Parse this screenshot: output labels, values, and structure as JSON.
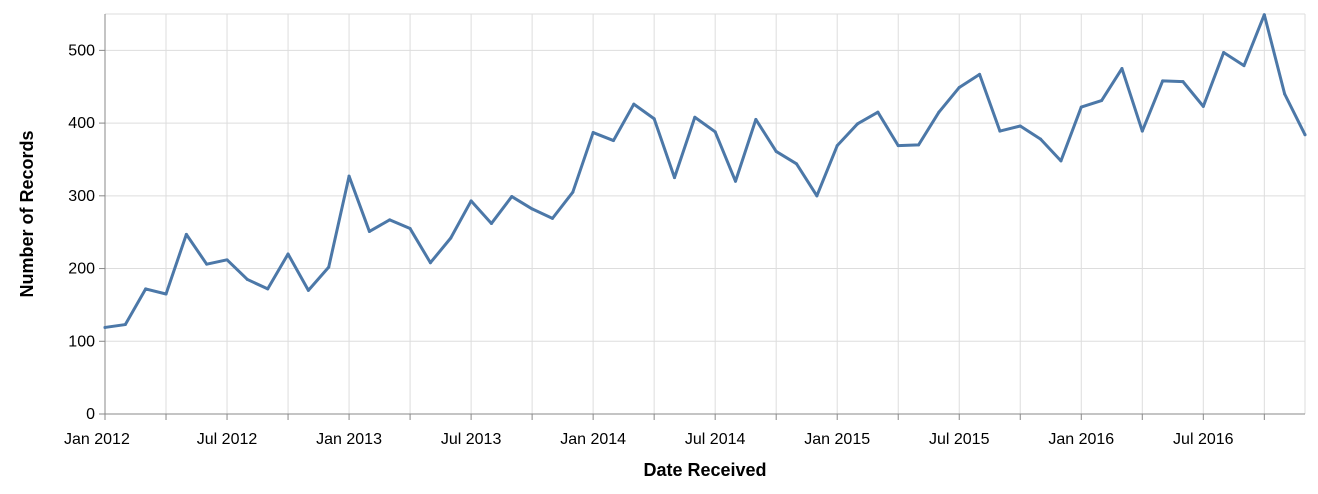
{
  "chart_data": {
    "type": "line",
    "xlabel": "Date Received",
    "ylabel": "Number of Records",
    "x_start": "Jan 2012",
    "x_end": "Dec 2016",
    "ylim": [
      0,
      550
    ],
    "grid": true,
    "colors": {
      "line": "#4c78a8",
      "grid": "#dddddd",
      "axis": "#888888"
    },
    "x_tick_labels": [
      "Jan 2012",
      "Jul 2012",
      "Jan 2013",
      "Jul 2013",
      "Jan 2014",
      "Jul 2014",
      "Jan 2015",
      "Jul 2015",
      "Jan 2016",
      "Jul 2016"
    ],
    "y_tick_labels": [
      "0",
      "100",
      "200",
      "300",
      "400",
      "500"
    ],
    "y_ticks": [
      0,
      100,
      200,
      300,
      400,
      500
    ],
    "x": [
      "2012-01",
      "2012-02",
      "2012-03",
      "2012-04",
      "2012-05",
      "2012-06",
      "2012-07",
      "2012-08",
      "2012-09",
      "2012-10",
      "2012-11",
      "2012-12",
      "2013-01",
      "2013-02",
      "2013-03",
      "2013-04",
      "2013-05",
      "2013-06",
      "2013-07",
      "2013-08",
      "2013-09",
      "2013-10",
      "2013-11",
      "2013-12",
      "2014-01",
      "2014-02",
      "2014-03",
      "2014-04",
      "2014-05",
      "2014-06",
      "2014-07",
      "2014-08",
      "2014-09",
      "2014-10",
      "2014-11",
      "2014-12",
      "2015-01",
      "2015-02",
      "2015-03",
      "2015-04",
      "2015-05",
      "2015-06",
      "2015-07",
      "2015-08",
      "2015-09",
      "2015-10",
      "2015-11",
      "2015-12",
      "2016-01",
      "2016-02",
      "2016-03",
      "2016-04",
      "2016-05",
      "2016-06",
      "2016-07",
      "2016-08",
      "2016-09",
      "2016-10",
      "2016-11",
      "2016-12"
    ],
    "values": [
      119,
      123,
      172,
      165,
      247,
      206,
      212,
      185,
      172,
      220,
      170,
      202,
      327,
      251,
      267,
      255,
      208,
      242,
      293,
      262,
      299,
      282,
      269,
      305,
      387,
      376,
      426,
      406,
      325,
      408,
      388,
      320,
      405,
      361,
      344,
      300,
      369,
      399,
      415,
      369,
      370,
      415,
      449,
      467,
      389,
      396,
      378,
      348,
      422,
      431,
      475,
      389,
      458,
      457,
      423,
      497,
      479,
      549,
      440,
      384
    ]
  }
}
